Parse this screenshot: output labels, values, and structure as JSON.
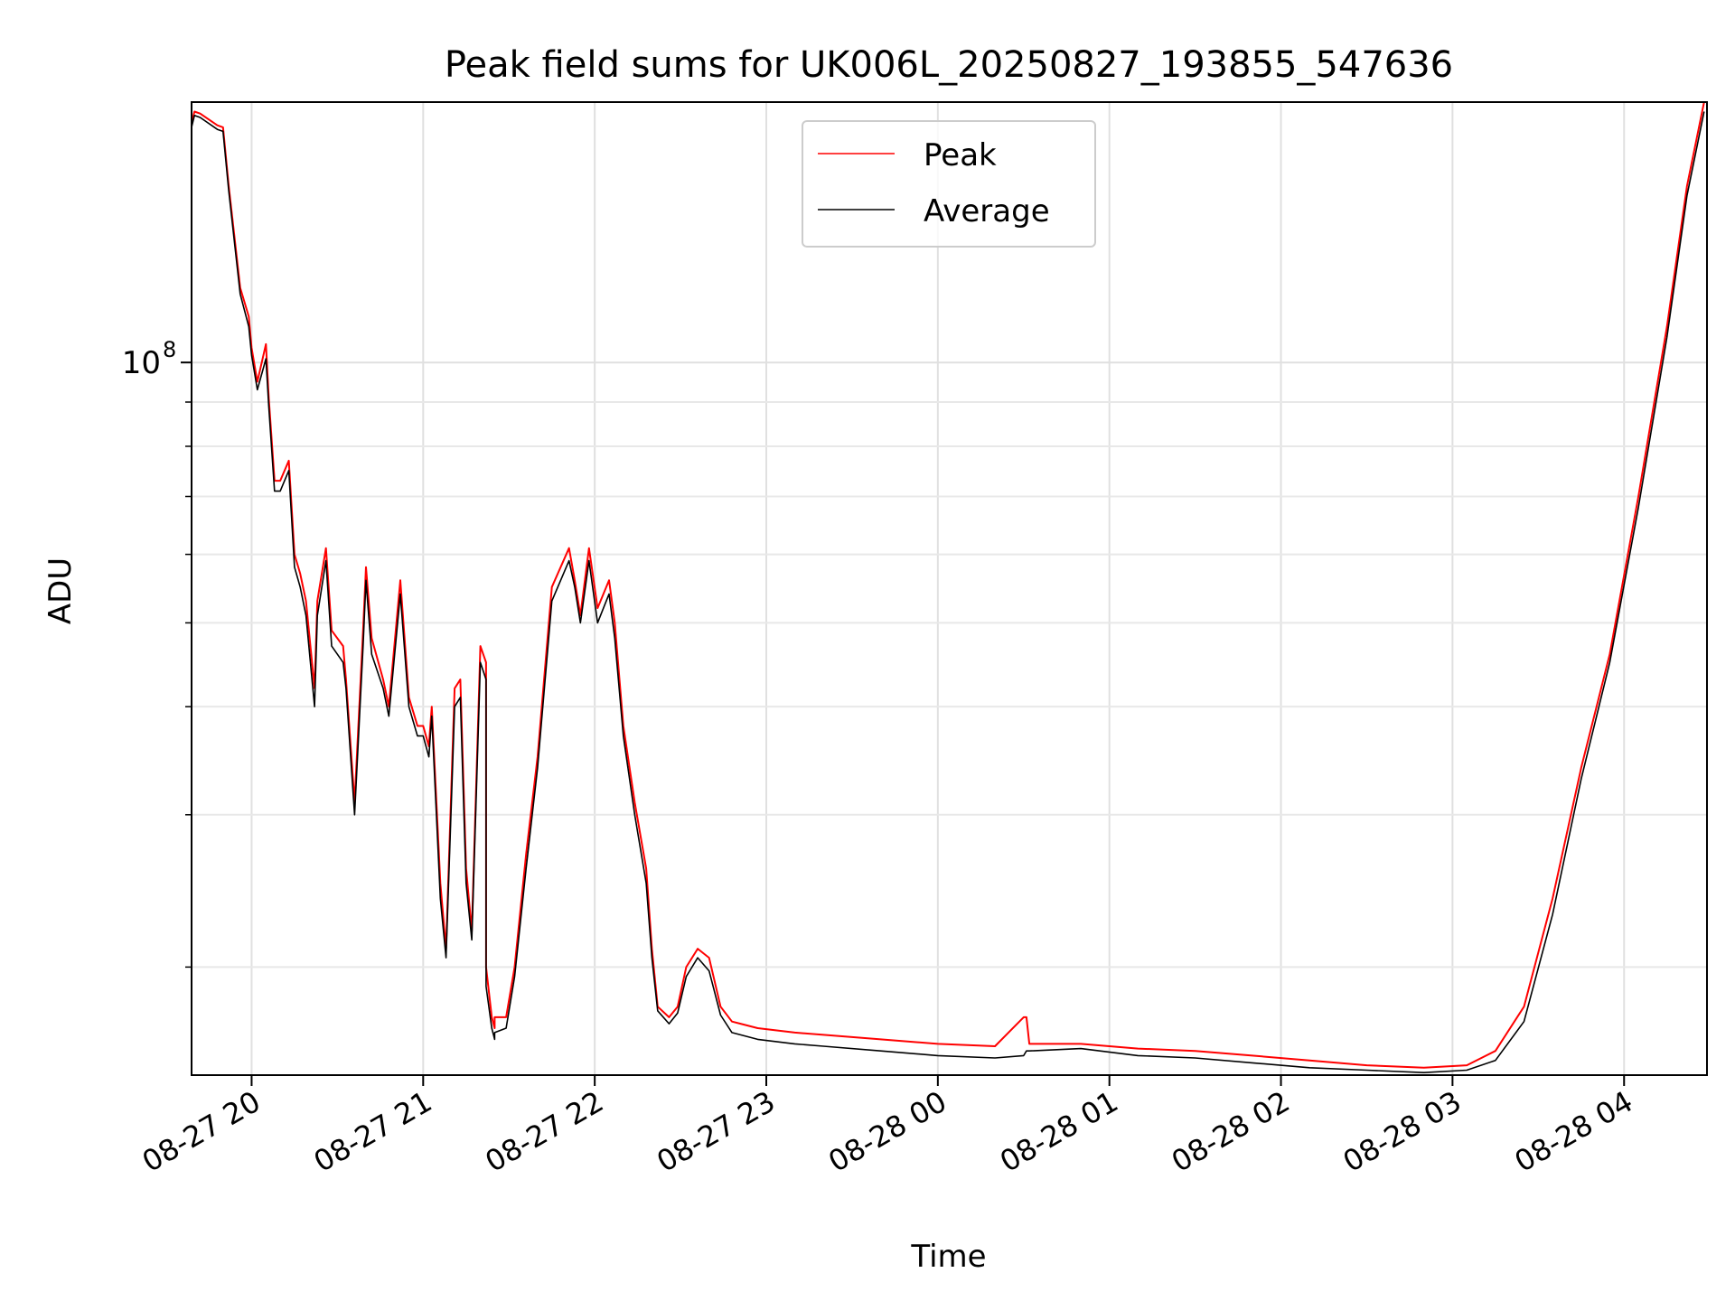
{
  "chart_data": {
    "type": "line",
    "title": "Peak field sums for UK006L_20250827_193855_547636",
    "xlabel": "Time",
    "ylabel": "ADU",
    "yscale": "log",
    "xlim": [
      "2025-08-27 19:39",
      "2025-08-28 04:29"
    ],
    "ylim": [
      15000000,
      200000000
    ],
    "grid": true,
    "legend_position": "top-center",
    "xticks": [
      "08-27 20",
      "08-27 21",
      "08-27 22",
      "08-27 23",
      "08-28 00",
      "08-28 01",
      "08-28 02",
      "08-28 03",
      "08-28 04"
    ],
    "ytick_labels": [
      {
        "value": 100000000,
        "base": "10",
        "exp": "8"
      }
    ],
    "y_minor_ticks": [
      20000000,
      30000000,
      40000000,
      50000000,
      60000000,
      70000000,
      80000000,
      90000000
    ],
    "x": [
      "2025-08-27 19:39",
      "2025-08-27 19:40",
      "2025-08-27 19:42",
      "2025-08-27 19:48",
      "2025-08-27 19:50",
      "2025-08-27 19:52",
      "2025-08-27 19:56",
      "2025-08-27 19:59",
      "2025-08-27 20:00",
      "2025-08-27 20:02",
      "2025-08-27 20:05",
      "2025-08-27 20:06",
      "2025-08-27 20:08",
      "2025-08-27 20:10",
      "2025-08-27 20:13",
      "2025-08-27 20:15",
      "2025-08-27 20:17",
      "2025-08-27 20:19",
      "2025-08-27 20:22",
      "2025-08-27 20:23",
      "2025-08-27 20:26",
      "2025-08-27 20:28",
      "2025-08-27 20:32",
      "2025-08-27 20:33",
      "2025-08-27 20:36",
      "2025-08-27 20:39",
      "2025-08-27 20:40",
      "2025-08-27 20:42",
      "2025-08-27 20:46",
      "2025-08-27 20:48",
      "2025-08-27 20:52",
      "2025-08-27 20:55",
      "2025-08-27 20:58",
      "2025-08-27 21:00",
      "2025-08-27 21:02",
      "2025-08-27 21:03",
      "2025-08-27 21:06",
      "2025-08-27 21:08",
      "2025-08-27 21:11",
      "2025-08-27 21:13",
      "2025-08-27 21:15",
      "2025-08-27 21:17",
      "2025-08-27 21:20",
      "2025-08-27 21:22",
      "2025-08-27 21:22",
      "2025-08-27 21:24",
      "2025-08-27 21:25",
      "2025-08-27 21:25",
      "2025-08-27 21:29",
      "2025-08-27 21:32",
      "2025-08-27 21:36",
      "2025-08-27 21:40",
      "2025-08-27 21:45",
      "2025-08-27 21:51",
      "2025-08-27 21:53",
      "2025-08-27 21:55",
      "2025-08-27 21:58",
      "2025-08-27 22:01",
      "2025-08-27 22:05",
      "2025-08-27 22:07",
      "2025-08-27 22:10",
      "2025-08-27 22:14",
      "2025-08-27 22:18",
      "2025-08-27 22:20",
      "2025-08-27 22:22",
      "2025-08-27 22:26",
      "2025-08-27 22:29",
      "2025-08-27 22:32",
      "2025-08-27 22:36",
      "2025-08-27 22:40",
      "2025-08-27 22:44",
      "2025-08-27 22:48",
      "2025-08-27 22:51",
      "2025-08-27 22:57",
      "2025-08-27 23:10",
      "2025-08-27 23:20",
      "2025-08-27 23:40",
      "2025-08-28 00:00",
      "2025-08-28 00:20",
      "2025-08-28 00:30",
      "2025-08-28 00:31",
      "2025-08-28 00:32",
      "2025-08-28 00:50",
      "2025-08-28 01:10",
      "2025-08-28 01:30",
      "2025-08-28 01:50",
      "2025-08-28 02:10",
      "2025-08-28 02:30",
      "2025-08-28 02:50",
      "2025-08-28 03:05",
      "2025-08-28 03:15",
      "2025-08-28 03:25",
      "2025-08-28 03:35",
      "2025-08-28 03:45",
      "2025-08-28 03:55",
      "2025-08-28 04:05",
      "2025-08-28 04:15",
      "2025-08-28 04:22",
      "2025-08-28 04:28"
    ],
    "series": [
      {
        "name": "Peak",
        "color": "#ff0000",
        "values": [
          189000000,
          195000000,
          194000000,
          188000000,
          187000000,
          160000000,
          122000000,
          113000000,
          104000000,
          95000000,
          105000000,
          91000000,
          73000000,
          73000000,
          77000000,
          60000000,
          57000000,
          53000000,
          42000000,
          53000000,
          61000000,
          49000000,
          47000000,
          43000000,
          31000000,
          49000000,
          58000000,
          48000000,
          43000000,
          40000000,
          56000000,
          41000000,
          38000000,
          38000000,
          36000000,
          40000000,
          25000000,
          21000000,
          42000000,
          43000000,
          26000000,
          22000000,
          47000000,
          45000000,
          20000000,
          17500000,
          17000000,
          17500000,
          17500000,
          20000000,
          27000000,
          35000000,
          55000000,
          61000000,
          56000000,
          51000000,
          61000000,
          52000000,
          56000000,
          50000000,
          38000000,
          31000000,
          26000000,
          21000000,
          18000000,
          17500000,
          18000000,
          20000000,
          21000000,
          20500000,
          18000000,
          17300000,
          17200000,
          17000000,
          16800000,
          16700000,
          16500000,
          16300000,
          16200000,
          17500000,
          17500000,
          16300000,
          16300000,
          16100000,
          16000000,
          15800000,
          15600000,
          15400000,
          15300000,
          15400000,
          16000000,
          18000000,
          24000000,
          34000000,
          46000000,
          70000000,
          110000000,
          160000000,
          200000000
        ]
      },
      {
        "name": "Average",
        "color": "#000000",
        "values": [
          187000000,
          193000000,
          192000000,
          186000000,
          185000000,
          158000000,
          120000000,
          110000000,
          102000000,
          93000000,
          101000000,
          89000000,
          71000000,
          71000000,
          75000000,
          58000000,
          55000000,
          51000000,
          40000000,
          51000000,
          59000000,
          47000000,
          45000000,
          42000000,
          30000000,
          47000000,
          56000000,
          46000000,
          42000000,
          39000000,
          54000000,
          40000000,
          37000000,
          37000000,
          35000000,
          39000000,
          24000000,
          20500000,
          40000000,
          41000000,
          25000000,
          21500000,
          45000000,
          43000000,
          19000000,
          17000000,
          16500000,
          16800000,
          17000000,
          19500000,
          26000000,
          34000000,
          53000000,
          59000000,
          55000000,
          50000000,
          59000000,
          50000000,
          54000000,
          48000000,
          37000000,
          30000000,
          25000000,
          20500000,
          17800000,
          17200000,
          17700000,
          19500000,
          20500000,
          19800000,
          17600000,
          16800000,
          16700000,
          16500000,
          16300000,
          16200000,
          16000000,
          15800000,
          15700000,
          15800000,
          16000000,
          16000000,
          16100000,
          15800000,
          15700000,
          15500000,
          15300000,
          15200000,
          15100000,
          15200000,
          15600000,
          17300000,
          23000000,
          33000000,
          45000000,
          68000000,
          107000000,
          156000000,
          195000000
        ]
      }
    ]
  }
}
